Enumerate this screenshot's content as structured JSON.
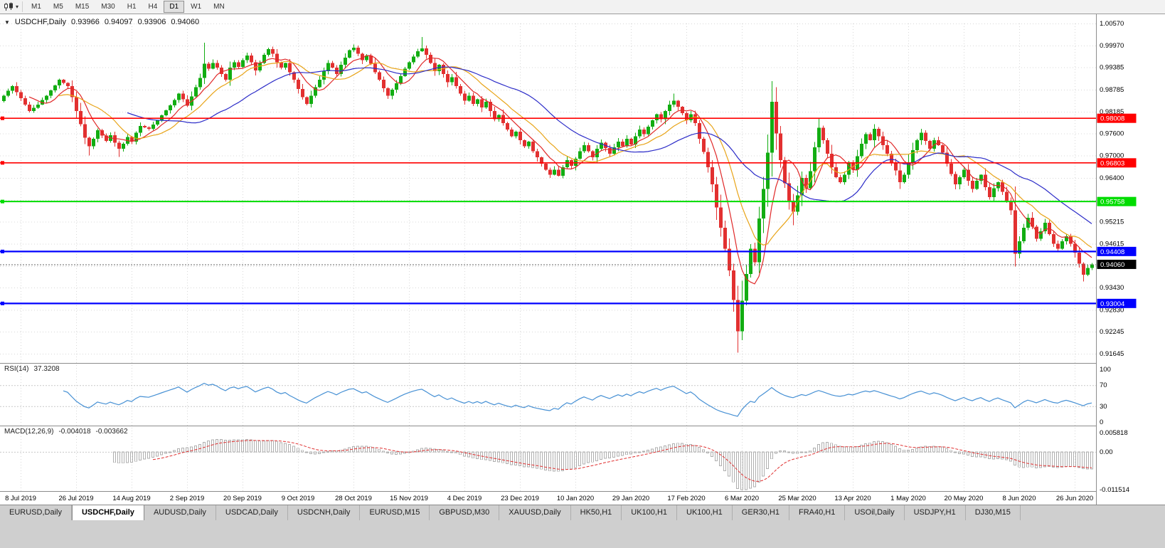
{
  "toolbar": {
    "timeframes": [
      {
        "label": "M1",
        "active": false
      },
      {
        "label": "M5",
        "active": false
      },
      {
        "label": "M15",
        "active": false
      },
      {
        "label": "M30",
        "active": false
      },
      {
        "label": "H1",
        "active": false
      },
      {
        "label": "H4",
        "active": false
      },
      {
        "label": "D1",
        "active": true
      },
      {
        "label": "W1",
        "active": false
      },
      {
        "label": "MN",
        "active": false
      }
    ]
  },
  "icons": {
    "chart_menu": "▼",
    "dropdown_caret": "▾"
  },
  "chart": {
    "header": {
      "symbol": "USDCHF,Daily",
      "open": "0.93966",
      "high": "0.94097",
      "low": "0.93906",
      "close": "0.94060"
    }
  },
  "chart_data": {
    "type": "candlestick",
    "symbol": "USDCHF",
    "timeframe": "Daily",
    "candle_count": 256,
    "x_label_first_index": 4,
    "x_label_step": 13,
    "x_labels": [
      "8 Jul 2019",
      "26 Jul 2019",
      "14 Aug 2019",
      "2 Sep 2019",
      "20 Sep 2019",
      "9 Oct 2019",
      "28 Oct 2019",
      "15 Nov 2019",
      "4 Dec 2019",
      "23 Dec 2019",
      "10 Jan 2020",
      "29 Jan 2020",
      "17 Feb 2020",
      "6 Mar 2020",
      "25 Mar 2020",
      "13 Apr 2020",
      "1 May 2020",
      "20 May 2020",
      "8 Jun 2020",
      "26 Jun 2020"
    ],
    "y_axis": {
      "ticks": [
        "1.00570",
        "0.99970",
        "0.99385",
        "0.98785",
        "0.98185",
        "0.97600",
        "0.97000",
        "0.96400",
        "0.95800",
        "0.95215",
        "0.94615",
        "0.94015",
        "0.93430",
        "0.92830",
        "0.92245",
        "0.91645"
      ]
    },
    "horizontal_lines": [
      {
        "price": 0.98008,
        "label": "0.98008",
        "color": "#FF0000",
        "width": 1.6
      },
      {
        "price": 0.96803,
        "label": "0.96803",
        "color": "#FF0000",
        "width": 1.6
      },
      {
        "price": 0.95758,
        "label": "0.95758",
        "color": "#00DC00",
        "width": 2
      },
      {
        "price": 0.94408,
        "label": "0.94408",
        "color": "#0000FF",
        "width": 2.2
      },
      {
        "price": 0.93004,
        "label": "0.93004",
        "color": "#0000FF",
        "width": 2.2
      }
    ],
    "current_price": {
      "value": 0.9406,
      "label": "0.94060",
      "tag_color": "#000000",
      "line_color": "#666666"
    },
    "candle_colors": {
      "up": "#12AD12",
      "down": "#E23030"
    },
    "moving_averages": [
      {
        "name": "sma-fast",
        "period": 7,
        "color": "#E02828"
      },
      {
        "name": "sma-mid",
        "period": 14,
        "color": "#E8A418"
      },
      {
        "name": "sma-slow",
        "period": 30,
        "color": "#2C2CC8"
      }
    ],
    "indicators": {
      "rsi": {
        "name": "RSI(14)",
        "period": 14,
        "value": "37.3208",
        "levels": [
          100,
          70,
          30,
          0
        ],
        "line_color": "#4690D4"
      },
      "macd": {
        "name": "MACD(12,26,9)",
        "fast": 12,
        "slow": 26,
        "signal": 9,
        "value_main": "-0.004018",
        "value_signal": "-0.003662",
        "axis_labels": [
          "0.005818",
          "0.00",
          "-0.011514"
        ],
        "axis_max": 0.005818,
        "axis_min": -0.011514,
        "histogram_color": "#AFAFAF",
        "signal_color": "#E03030"
      }
    },
    "noise_seed": 20200707,
    "last_candle": {
      "open": 0.93966,
      "high": 0.94097,
      "low": 0.93906,
      "close": 0.9406
    },
    "wick_overrides": {
      "20": {
        "low": 0.97
      },
      "27": {
        "low": 0.9696
      },
      "47": {
        "high": 1.0005
      },
      "98": {
        "high": 1.002
      },
      "130": {
        "low": 0.9643
      },
      "157": {
        "high": 0.9868
      },
      "172": {
        "low": 0.9167
      },
      "180": {
        "high": 0.9901
      },
      "185": {
        "low": 0.9512
      },
      "191": {
        "high": 0.9801
      },
      "237": {
        "low": 0.94
      },
      "253": {
        "low": 0.936
      }
    },
    "price_path_anchors": [
      [
        0,
        0.9862
      ],
      [
        2,
        0.9888
      ],
      [
        4,
        0.9855
      ],
      [
        6,
        0.982
      ],
      [
        8,
        0.9838
      ],
      [
        10,
        0.9862
      ],
      [
        12,
        0.989
      ],
      [
        13,
        0.9905
      ],
      [
        15,
        0.9888
      ],
      [
        16,
        0.9858
      ],
      [
        17,
        0.982
      ],
      [
        18,
        0.9785
      ],
      [
        19,
        0.9748
      ],
      [
        20,
        0.9725
      ],
      [
        21,
        0.9745
      ],
      [
        22,
        0.9768
      ],
      [
        24,
        0.974
      ],
      [
        25,
        0.9755
      ],
      [
        26,
        0.9735
      ],
      [
        27,
        0.9718
      ],
      [
        28,
        0.9732
      ],
      [
        29,
        0.975
      ],
      [
        30,
        0.9738
      ],
      [
        31,
        0.9762
      ],
      [
        32,
        0.978
      ],
      [
        34,
        0.9772
      ],
      [
        36,
        0.9795
      ],
      [
        38,
        0.9822
      ],
      [
        40,
        0.985
      ],
      [
        41,
        0.9868
      ],
      [
        42,
        0.9852
      ],
      [
        43,
        0.9835
      ],
      [
        44,
        0.986
      ],
      [
        45,
        0.9885
      ],
      [
        46,
        0.991
      ],
      [
        47,
        0.9948
      ],
      [
        48,
        0.9935
      ],
      [
        49,
        0.995
      ],
      [
        50,
        0.9938
      ],
      [
        51,
        0.992
      ],
      [
        52,
        0.9905
      ],
      [
        53,
        0.9938
      ],
      [
        54,
        0.9952
      ],
      [
        55,
        0.994
      ],
      [
        56,
        0.9958
      ],
      [
        57,
        0.997
      ],
      [
        58,
        0.9952
      ],
      [
        59,
        0.993
      ],
      [
        60,
        0.995
      ],
      [
        61,
        0.9972
      ],
      [
        62,
        0.9988
      ],
      [
        63,
        0.9975
      ],
      [
        64,
        0.9952
      ],
      [
        65,
        0.9938
      ],
      [
        66,
        0.995
      ],
      [
        67,
        0.9925
      ],
      [
        68,
        0.9905
      ],
      [
        69,
        0.988
      ],
      [
        70,
        0.9858
      ],
      [
        71,
        0.984
      ],
      [
        72,
        0.9862
      ],
      [
        73,
        0.9885
      ],
      [
        74,
        0.9905
      ],
      [
        75,
        0.9928
      ],
      [
        76,
        0.995
      ],
      [
        77,
        0.9938
      ],
      [
        78,
        0.992
      ],
      [
        79,
        0.9945
      ],
      [
        80,
        0.9965
      ],
      [
        81,
        0.9985
      ],
      [
        82,
        0.9992
      ],
      [
        83,
        0.9975
      ],
      [
        84,
        0.9958
      ],
      [
        85,
        0.997
      ],
      [
        86,
        0.9948
      ],
      [
        87,
        0.9925
      ],
      [
        88,
        0.9905
      ],
      [
        89,
        0.9882
      ],
      [
        90,
        0.9862
      ],
      [
        91,
        0.9878
      ],
      [
        92,
        0.9895
      ],
      [
        93,
        0.9915
      ],
      [
        94,
        0.9935
      ],
      [
        95,
        0.9952
      ],
      [
        96,
        0.9968
      ],
      [
        97,
        0.9982
      ],
      [
        98,
        0.999
      ],
      [
        99,
        0.9972
      ],
      [
        100,
        0.995
      ],
      [
        101,
        0.9928
      ],
      [
        102,
        0.9945
      ],
      [
        103,
        0.992
      ],
      [
        104,
        0.9898
      ],
      [
        105,
        0.9912
      ],
      [
        106,
        0.9888
      ],
      [
        107,
        0.9868
      ],
      [
        108,
        0.9848
      ],
      [
        109,
        0.9862
      ],
      [
        110,
        0.984
      ],
      [
        111,
        0.9852
      ],
      [
        112,
        0.983
      ],
      [
        113,
        0.9845
      ],
      [
        114,
        0.982
      ],
      [
        115,
        0.9798
      ],
      [
        116,
        0.981
      ],
      [
        117,
        0.9788
      ],
      [
        118,
        0.977
      ],
      [
        119,
        0.9752
      ],
      [
        120,
        0.9765
      ],
      [
        121,
        0.9742
      ],
      [
        122,
        0.9725
      ],
      [
        123,
        0.9738
      ],
      [
        124,
        0.9712
      ],
      [
        125,
        0.9695
      ],
      [
        126,
        0.9678
      ],
      [
        127,
        0.9662
      ],
      [
        128,
        0.9648
      ],
      [
        129,
        0.9662
      ],
      [
        130,
        0.9645
      ],
      [
        131,
        0.9668
      ],
      [
        132,
        0.9688
      ],
      [
        133,
        0.9672
      ],
      [
        134,
        0.9692
      ],
      [
        135,
        0.9712
      ],
      [
        136,
        0.9728
      ],
      [
        137,
        0.9712
      ],
      [
        138,
        0.9695
      ],
      [
        139,
        0.9718
      ],
      [
        140,
        0.9735
      ],
      [
        141,
        0.972
      ],
      [
        142,
        0.9705
      ],
      [
        143,
        0.9722
      ],
      [
        144,
        0.9738
      ],
      [
        145,
        0.9725
      ],
      [
        146,
        0.9745
      ],
      [
        147,
        0.973
      ],
      [
        148,
        0.9752
      ],
      [
        149,
        0.977
      ],
      [
        150,
        0.9758
      ],
      [
        151,
        0.9778
      ],
      [
        152,
        0.9795
      ],
      [
        153,
        0.9812
      ],
      [
        154,
        0.9798
      ],
      [
        155,
        0.982
      ],
      [
        156,
        0.9838
      ],
      [
        157,
        0.9848
      ],
      [
        158,
        0.9832
      ],
      [
        159,
        0.9815
      ],
      [
        160,
        0.9795
      ],
      [
        161,
        0.9812
      ],
      [
        162,
        0.9788
      ],
      [
        163,
        0.9745
      ],
      [
        164,
        0.971
      ],
      [
        165,
        0.9668
      ],
      [
        166,
        0.9622
      ],
      [
        167,
        0.956
      ],
      [
        168,
        0.9505
      ],
      [
        169,
        0.9448
      ],
      [
        170,
        0.939
      ],
      [
        171,
        0.931
      ],
      [
        172,
        0.9225
      ],
      [
        173,
        0.9308
      ],
      [
        174,
        0.938
      ],
      [
        175,
        0.9448
      ],
      [
        176,
        0.9412
      ],
      [
        177,
        0.953
      ],
      [
        178,
        0.961
      ],
      [
        179,
        0.9708
      ],
      [
        180,
        0.9845
      ],
      [
        181,
        0.976
      ],
      [
        182,
        0.9688
      ],
      [
        183,
        0.9625
      ],
      [
        184,
        0.9578
      ],
      [
        185,
        0.9548
      ],
      [
        186,
        0.9592
      ],
      [
        187,
        0.964
      ],
      [
        188,
        0.9612
      ],
      [
        189,
        0.9658
      ],
      [
        190,
        0.9722
      ],
      [
        191,
        0.9775
      ],
      [
        192,
        0.9742
      ],
      [
        193,
        0.9705
      ],
      [
        194,
        0.9668
      ],
      [
        195,
        0.9642
      ],
      [
        196,
        0.9628
      ],
      [
        197,
        0.9648
      ],
      [
        198,
        0.968
      ],
      [
        199,
        0.9662
      ],
      [
        200,
        0.9698
      ],
      [
        201,
        0.9732
      ],
      [
        202,
        0.9758
      ],
      [
        203,
        0.9742
      ],
      [
        204,
        0.9772
      ],
      [
        205,
        0.9752
      ],
      [
        206,
        0.9728
      ],
      [
        207,
        0.9705
      ],
      [
        208,
        0.9682
      ],
      [
        209,
        0.966
      ],
      [
        210,
        0.9628
      ],
      [
        211,
        0.9648
      ],
      [
        212,
        0.9682
      ],
      [
        213,
        0.9715
      ],
      [
        214,
        0.9742
      ],
      [
        215,
        0.9762
      ],
      [
        216,
        0.974
      ],
      [
        217,
        0.9718
      ],
      [
        218,
        0.9742
      ],
      [
        219,
        0.9728
      ],
      [
        220,
        0.9708
      ],
      [
        221,
        0.9678
      ],
      [
        222,
        0.965
      ],
      [
        223,
        0.9622
      ],
      [
        224,
        0.9642
      ],
      [
        225,
        0.9662
      ],
      [
        226,
        0.9632
      ],
      [
        227,
        0.961
      ],
      [
        228,
        0.9632
      ],
      [
        229,
        0.9648
      ],
      [
        230,
        0.9615
      ],
      [
        231,
        0.9588
      ],
      [
        232,
        0.9612
      ],
      [
        233,
        0.9628
      ],
      [
        234,
        0.9602
      ],
      [
        235,
        0.9578
      ],
      [
        236,
        0.9552
      ],
      [
        237,
        0.9435
      ],
      [
        238,
        0.9468
      ],
      [
        239,
        0.9505
      ],
      [
        240,
        0.9532
      ],
      [
        241,
        0.9508
      ],
      [
        242,
        0.9475
      ],
      [
        243,
        0.9495
      ],
      [
        244,
        0.9518
      ],
      [
        245,
        0.9488
      ],
      [
        246,
        0.9462
      ],
      [
        247,
        0.9448
      ],
      [
        248,
        0.9468
      ],
      [
        249,
        0.9482
      ],
      [
        250,
        0.9462
      ],
      [
        251,
        0.9438
      ],
      [
        252,
        0.9408
      ],
      [
        253,
        0.9378
      ],
      [
        254,
        0.93966
      ],
      [
        255,
        0.9406
      ]
    ],
    "grid_color": "#D8D8D8",
    "level_line_color": "#C8C8C8"
  },
  "tabs": [
    {
      "label": "EURUSD,Daily",
      "active": false
    },
    {
      "label": "USDCHF,Daily",
      "active": true
    },
    {
      "label": "AUDUSD,Daily",
      "active": false
    },
    {
      "label": "USDCAD,Daily",
      "active": false
    },
    {
      "label": "USDCNH,Daily",
      "active": false
    },
    {
      "label": "EURUSD,M15",
      "active": false
    },
    {
      "label": "GBPUSD,M30",
      "active": false
    },
    {
      "label": "XAUUSD,Daily",
      "active": false
    },
    {
      "label": "HK50,H1",
      "active": false
    },
    {
      "label": "UK100,H1",
      "active": false
    },
    {
      "label": "UK100,H1",
      "active": false
    },
    {
      "label": "GER30,H1",
      "active": false
    },
    {
      "label": "FRA40,H1",
      "active": false
    },
    {
      "label": "USOil,Daily",
      "active": false
    },
    {
      "label": "USDJPY,H1",
      "active": false
    },
    {
      "label": "DJ30,M15",
      "active": false
    }
  ]
}
